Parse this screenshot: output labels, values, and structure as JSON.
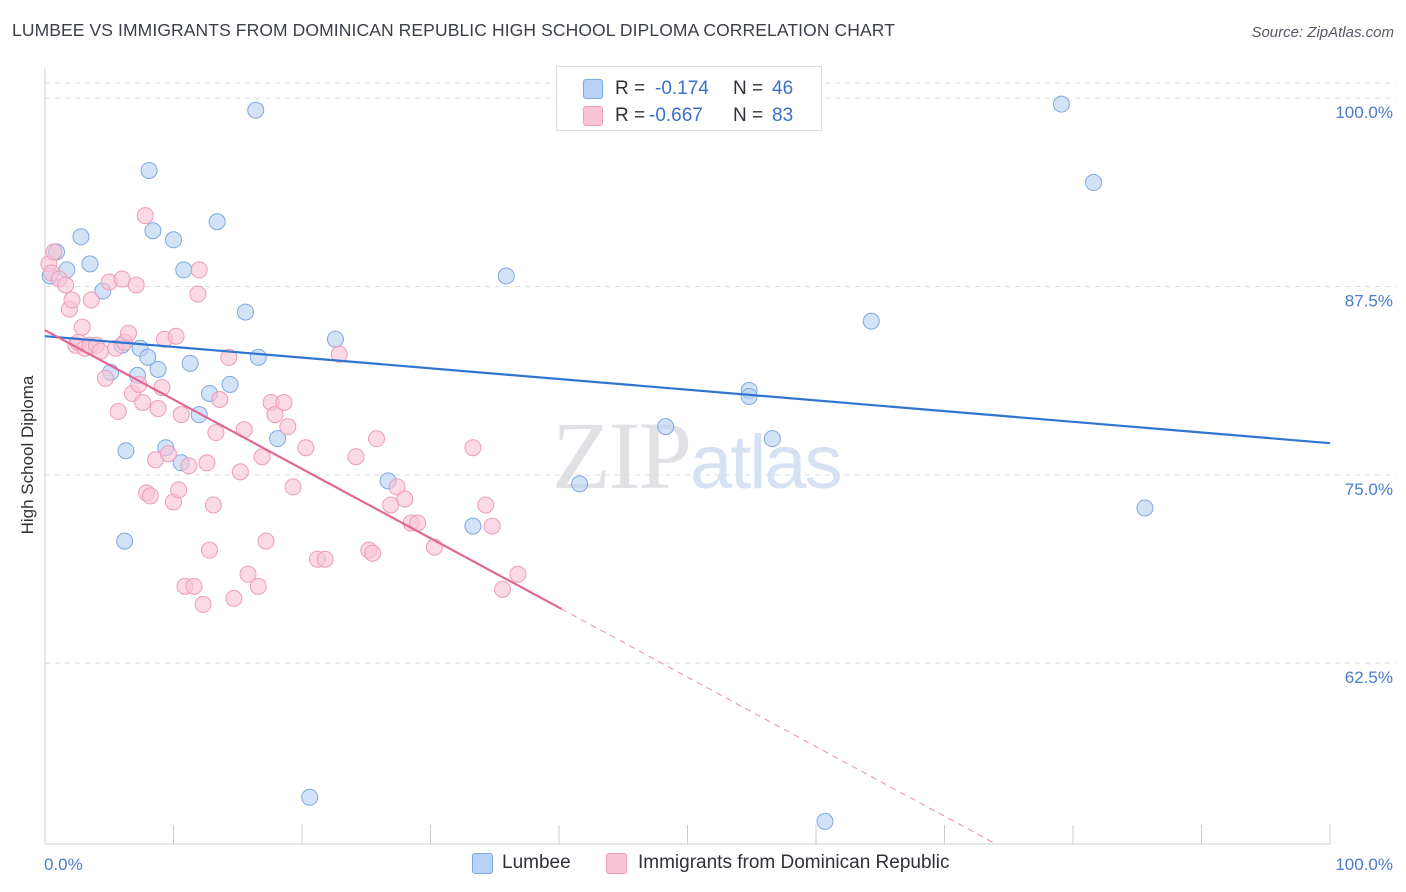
{
  "header": {
    "title": "LUMBEE VS IMMIGRANTS FROM DOMINICAN REPUBLIC HIGH SCHOOL DIPLOMA CORRELATION CHART",
    "source": "Source: ZipAtlas.com"
  },
  "watermark": {
    "zip": "ZIP",
    "atlas": "atlas"
  },
  "stats_legend": [
    {
      "r_label": "R =",
      "r_value": "-0.174",
      "n_label": "N =",
      "n_value": "46"
    },
    {
      "r_label": "R =",
      "r_value": "-0.667",
      "n_label": "N =",
      "n_value": "83"
    }
  ],
  "colors": {
    "blue_fill": "#b7d2f4",
    "blue_stroke": "#7fa8e0",
    "blue_line": "#2f74cf",
    "pink_fill": "#f8c3d5",
    "pink_stroke": "#ec9cb9",
    "pink_line": "#e06694",
    "grid": "#d8dbe0",
    "axis_text": "#4a7ccd"
  },
  "chart_data": {
    "type": "scatter",
    "title": "LUMBEE VS IMMIGRANTS FROM DOMINICAN REPUBLIC HIGH SCHOOL DIPLOMA CORRELATION CHART",
    "xlabel": "",
    "ylabel": "High School Diploma",
    "xlim": [
      0,
      100
    ],
    "ylim": [
      50.5,
      102
    ],
    "x_tick_labels": [
      "0.0%",
      "100.0%"
    ],
    "y_ticks": [
      62.5,
      75.0,
      87.5,
      100.0
    ],
    "y_tick_labels": [
      "62.5%",
      "75.0%",
      "87.5%",
      "100.0%"
    ],
    "grid": true,
    "legend_position": "bottom",
    "series": [
      {
        "name": "Lumbee",
        "color": "blue",
        "trend": {
          "x": [
            0,
            100
          ],
          "y": [
            84.2,
            77.1
          ],
          "dashed_from": null
        },
        "points": [
          [
            0.4,
            88.2
          ],
          [
            0.9,
            89.8
          ],
          [
            1.7,
            88.6
          ],
          [
            2.8,
            90.8
          ],
          [
            3.5,
            89.0
          ],
          [
            4.5,
            87.2
          ],
          [
            6.0,
            83.6
          ],
          [
            5.1,
            81.8
          ],
          [
            6.3,
            76.6
          ],
          [
            6.2,
            70.6
          ],
          [
            7.2,
            81.6
          ],
          [
            7.4,
            83.4
          ],
          [
            8.0,
            82.8
          ],
          [
            8.1,
            95.2
          ],
          [
            8.4,
            91.2
          ],
          [
            8.8,
            82.0
          ],
          [
            9.4,
            76.8
          ],
          [
            10.0,
            90.6
          ],
          [
            10.6,
            75.8
          ],
          [
            10.8,
            88.6
          ],
          [
            11.3,
            82.4
          ],
          [
            12.0,
            79.0
          ],
          [
            12.8,
            80.4
          ],
          [
            13.4,
            91.8
          ],
          [
            14.4,
            81.0
          ],
          [
            15.6,
            85.8
          ],
          [
            16.4,
            99.2
          ],
          [
            16.6,
            82.8
          ],
          [
            18.1,
            77.4
          ],
          [
            20.6,
            53.6
          ],
          [
            22.6,
            84.0
          ],
          [
            26.7,
            74.6
          ],
          [
            33.3,
            71.6
          ],
          [
            35.9,
            88.2
          ],
          [
            41.6,
            74.4
          ],
          [
            48.3,
            78.2
          ],
          [
            54.8,
            80.6
          ],
          [
            54.8,
            80.2
          ],
          [
            56.6,
            77.4
          ],
          [
            60.7,
            52.0
          ],
          [
            64.3,
            85.2
          ],
          [
            79.1,
            99.6
          ],
          [
            81.6,
            94.4
          ],
          [
            85.6,
            72.8
          ]
        ]
      },
      {
        "name": "Immigrants from Dominican Republic",
        "color": "pink",
        "trend": {
          "x": [
            0,
            40.2
          ],
          "y": [
            84.6,
            66.1
          ],
          "dashed_to": [
            74,
            50.5
          ]
        },
        "points": [
          [
            0.3,
            89.0
          ],
          [
            0.5,
            88.4
          ],
          [
            0.7,
            89.8
          ],
          [
            1.1,
            88.0
          ],
          [
            1.6,
            87.6
          ],
          [
            1.9,
            86.0
          ],
          [
            2.1,
            86.6
          ],
          [
            2.4,
            83.6
          ],
          [
            2.6,
            83.8
          ],
          [
            2.9,
            84.8
          ],
          [
            3.1,
            83.4
          ],
          [
            3.5,
            83.6
          ],
          [
            3.6,
            86.6
          ],
          [
            4.0,
            83.6
          ],
          [
            4.3,
            83.2
          ],
          [
            4.7,
            81.4
          ],
          [
            5.0,
            87.8
          ],
          [
            5.5,
            83.4
          ],
          [
            5.7,
            79.2
          ],
          [
            6.0,
            88.0
          ],
          [
            6.2,
            83.8
          ],
          [
            6.5,
            84.4
          ],
          [
            6.8,
            80.4
          ],
          [
            7.1,
            87.6
          ],
          [
            7.3,
            81.0
          ],
          [
            7.6,
            79.8
          ],
          [
            7.8,
            92.2
          ],
          [
            7.9,
            73.8
          ],
          [
            8.2,
            73.6
          ],
          [
            8.6,
            76.0
          ],
          [
            8.8,
            79.4
          ],
          [
            9.1,
            80.8
          ],
          [
            9.3,
            84.0
          ],
          [
            9.6,
            76.4
          ],
          [
            10.0,
            73.2
          ],
          [
            10.2,
            84.2
          ],
          [
            10.4,
            74.0
          ],
          [
            10.6,
            79.0
          ],
          [
            10.9,
            67.6
          ],
          [
            11.2,
            75.6
          ],
          [
            11.6,
            67.6
          ],
          [
            11.9,
            87.0
          ],
          [
            12.0,
            88.6
          ],
          [
            12.3,
            66.4
          ],
          [
            12.6,
            75.8
          ],
          [
            12.8,
            70.0
          ],
          [
            13.1,
            73.0
          ],
          [
            13.3,
            77.8
          ],
          [
            13.6,
            80.0
          ],
          [
            14.3,
            82.8
          ],
          [
            14.7,
            66.8
          ],
          [
            15.2,
            75.2
          ],
          [
            15.5,
            78.0
          ],
          [
            15.8,
            68.4
          ],
          [
            16.6,
            67.6
          ],
          [
            16.9,
            76.2
          ],
          [
            17.2,
            70.6
          ],
          [
            17.6,
            79.8
          ],
          [
            17.9,
            79.0
          ],
          [
            18.6,
            79.8
          ],
          [
            18.9,
            78.2
          ],
          [
            19.3,
            74.2
          ],
          [
            20.3,
            76.8
          ],
          [
            21.2,
            69.4
          ],
          [
            21.8,
            69.4
          ],
          [
            22.9,
            83.0
          ],
          [
            24.2,
            76.2
          ],
          [
            25.2,
            70.0
          ],
          [
            25.5,
            69.8
          ],
          [
            25.8,
            77.4
          ],
          [
            26.9,
            73.0
          ],
          [
            27.4,
            74.2
          ],
          [
            28.0,
            73.4
          ],
          [
            28.5,
            71.8
          ],
          [
            29.0,
            71.8
          ],
          [
            30.3,
            70.2
          ],
          [
            33.3,
            76.8
          ],
          [
            34.3,
            73.0
          ],
          [
            34.8,
            71.6
          ],
          [
            35.6,
            67.4
          ],
          [
            36.8,
            68.4
          ]
        ]
      }
    ]
  },
  "bottom_legend": [
    {
      "label": "Lumbee"
    },
    {
      "label": "Immigrants from Dominican Republic"
    }
  ]
}
